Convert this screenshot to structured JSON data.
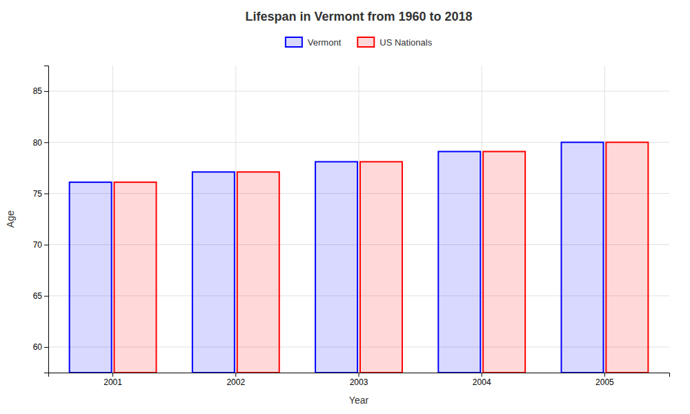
{
  "chart_data": {
    "type": "bar",
    "title": "Lifespan in Vermont from 1960 to 2018",
    "xlabel": "Year",
    "ylabel": "Age",
    "categories": [
      "2001",
      "2002",
      "2003",
      "2004",
      "2005"
    ],
    "series": [
      {
        "name": "Vermont",
        "color": "#0000ff",
        "values": [
          76.1,
          77.1,
          78.1,
          79.1,
          80.0
        ]
      },
      {
        "name": "US Nationals",
        "color": "#ff0000",
        "values": [
          76.1,
          77.1,
          78.1,
          79.1,
          80.0
        ]
      }
    ],
    "ylim": [
      57.5,
      87.5
    ],
    "yticks": [
      60,
      65,
      70,
      75,
      80,
      85
    ],
    "grid": true,
    "legend": "top"
  }
}
